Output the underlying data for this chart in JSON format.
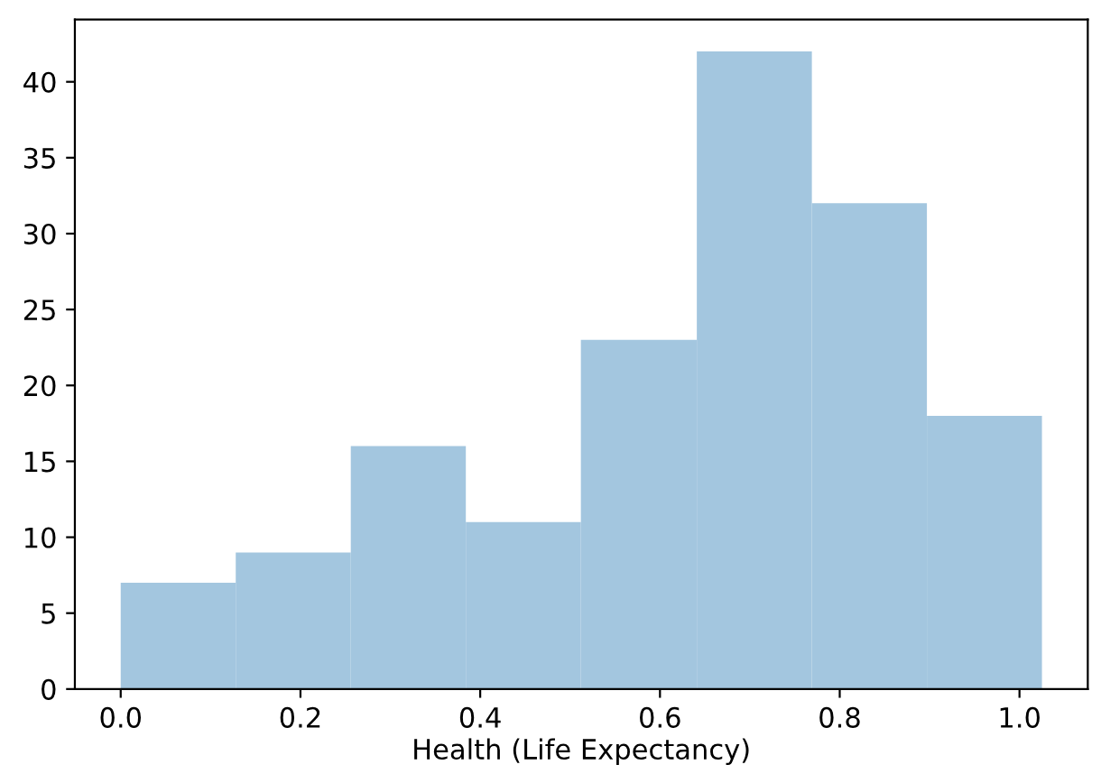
{
  "chart_data": {
    "type": "histogram",
    "xlabel": "Health (Life Expectancy)",
    "bins": [
      0,
      0.128,
      0.256,
      0.384,
      0.512,
      0.641,
      0.769,
      0.897,
      1.025
    ],
    "values": [
      7,
      9,
      16,
      11,
      23,
      42,
      32,
      18
    ],
    "color": "#a3c6df",
    "xlim": [
      -0.051,
      1.076
    ],
    "ylim": [
      0,
      44.1
    ],
    "xticks": [
      {
        "value": 0,
        "label": "0.0"
      },
      0.2,
      0.4,
      0.6,
      0.8,
      {
        "value": 1,
        "label": "1.0"
      }
    ],
    "yticks": [
      0,
      5,
      10,
      15,
      20,
      25,
      30,
      35,
      40
    ],
    "grid": false
  }
}
